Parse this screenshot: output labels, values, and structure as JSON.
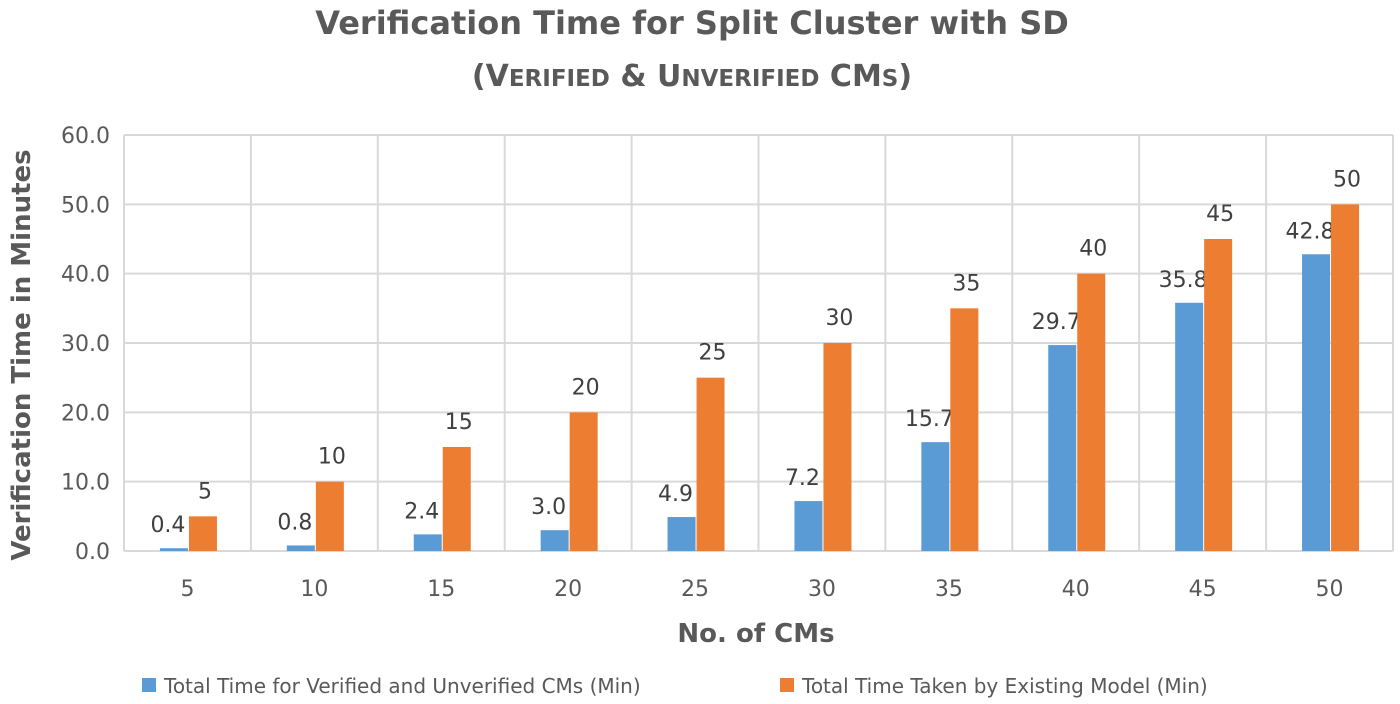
{
  "chart_data": {
    "type": "bar",
    "title": "Verification Time for Split Cluster with SD",
    "subtitle": "(Verified & Unverified CMs)",
    "xlabel": "No. of CMs",
    "ylabel": "Verification Time in Minutes",
    "categories": [
      "5",
      "10",
      "15",
      "20",
      "25",
      "30",
      "35",
      "40",
      "45",
      "50"
    ],
    "series": [
      {
        "name": "Total Time for Verified and Unverified CMs (Min)",
        "color": "#5b9bd5",
        "values": [
          0.4,
          0.8,
          2.4,
          3.0,
          4.9,
          7.2,
          15.7,
          29.7,
          35.8,
          42.8
        ],
        "labels": [
          "0.4",
          "0.8",
          "2.4",
          "3.0",
          "4.9",
          "7.2",
          "15.7",
          "29.7",
          "35.8",
          "42.8"
        ]
      },
      {
        "name": "Total Time Taken by Existing Model (Min)",
        "color": "#ed7d31",
        "values": [
          5,
          10,
          15,
          20,
          25,
          30,
          35,
          40,
          45,
          50
        ],
        "labels": [
          "5",
          "10",
          "15",
          "20",
          "25",
          "30",
          "35",
          "40",
          "45",
          "50"
        ]
      }
    ],
    "ylim": [
      0,
      60
    ],
    "yticks": [
      "0.0",
      "10.0",
      "20.0",
      "30.0",
      "40.0",
      "50.0",
      "60.0"
    ],
    "grid": true,
    "legend_position": "bottom"
  }
}
